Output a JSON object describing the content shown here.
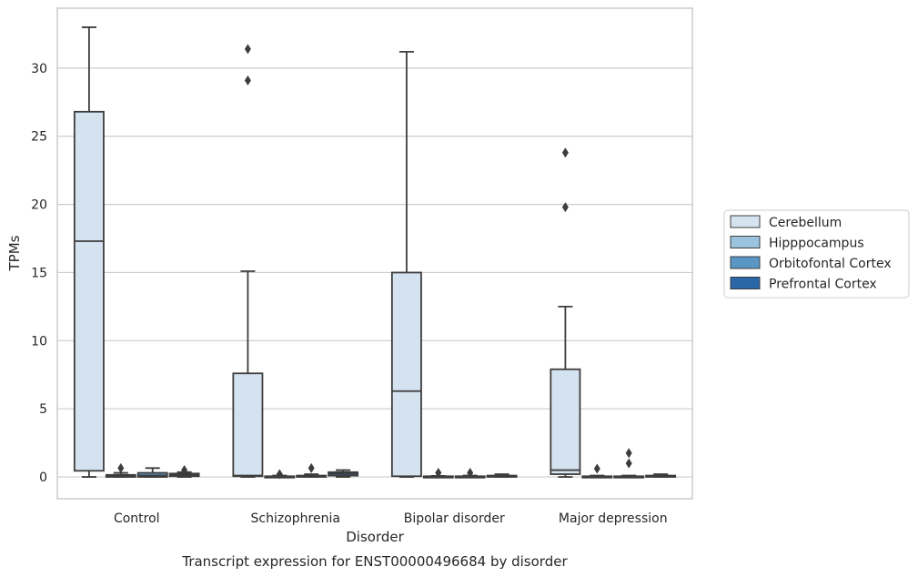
{
  "chart_data": {
    "type": "boxplot",
    "xlabel": "Disorder",
    "ylabel": "TPMs",
    "caption": "Transcript expression for ENST00000496684 by disorder",
    "ylim": [
      -1.6,
      34.4
    ],
    "yticks": [
      0,
      5,
      10,
      15,
      20,
      25,
      30
    ],
    "grid": "horizontal",
    "legend_placement": "right",
    "categories": [
      "Control",
      "Schizophrenia",
      "Bipolar disorder",
      "Major depression"
    ],
    "series": [
      {
        "name": "Cerebellum",
        "color": "#d5e2f0",
        "boxes": [
          {
            "whisker_low": 0.0,
            "q1": 0.45,
            "median": 17.3,
            "q3": 26.8,
            "whisker_high": 33.0,
            "outliers": []
          },
          {
            "whisker_low": 0.0,
            "q1": 0.05,
            "median": 0.1,
            "q3": 7.6,
            "whisker_high": 15.1,
            "outliers": [
              29.1,
              31.4
            ]
          },
          {
            "whisker_low": 0.0,
            "q1": 0.05,
            "median": 6.3,
            "q3": 15.0,
            "whisker_high": 31.2,
            "outliers": []
          },
          {
            "whisker_low": 0.0,
            "q1": 0.2,
            "median": 0.5,
            "q3": 7.9,
            "whisker_high": 12.5,
            "outliers": [
              19.8,
              23.8
            ]
          }
        ]
      },
      {
        "name": "Hipppocampus",
        "color": "#9bc3de",
        "boxes": [
          {
            "whisker_low": 0.0,
            "q1": 0.0,
            "median": 0.05,
            "q3": 0.15,
            "whisker_high": 0.3,
            "outliers": [
              0.65
            ]
          },
          {
            "whisker_low": 0.0,
            "q1": 0.0,
            "median": 0.02,
            "q3": 0.05,
            "whisker_high": 0.1,
            "outliers": [
              0.2
            ]
          },
          {
            "whisker_low": 0.0,
            "q1": 0.0,
            "median": 0.02,
            "q3": 0.05,
            "whisker_high": 0.08,
            "outliers": [
              0.3
            ]
          },
          {
            "whisker_low": 0.0,
            "q1": 0.0,
            "median": 0.02,
            "q3": 0.05,
            "whisker_high": 0.1,
            "outliers": [
              0.6
            ]
          }
        ]
      },
      {
        "name": "Orbitofontal Cortex",
        "color": "#5a96c4",
        "boxes": [
          {
            "whisker_low": 0.0,
            "q1": 0.0,
            "median": 0.1,
            "q3": 0.3,
            "whisker_high": 0.65,
            "outliers": []
          },
          {
            "whisker_low": 0.0,
            "q1": 0.0,
            "median": 0.03,
            "q3": 0.1,
            "whisker_high": 0.2,
            "outliers": [
              0.65
            ]
          },
          {
            "whisker_low": 0.0,
            "q1": 0.0,
            "median": 0.02,
            "q3": 0.05,
            "whisker_high": 0.1,
            "outliers": [
              0.3
            ]
          },
          {
            "whisker_low": 0.0,
            "q1": 0.0,
            "median": 0.02,
            "q3": 0.05,
            "whisker_high": 0.1,
            "outliers": [
              1.0,
              1.75
            ]
          }
        ]
      },
      {
        "name": "Prefrontal Cortex",
        "color": "#2a66a8",
        "boxes": [
          {
            "whisker_low": 0.0,
            "q1": 0.05,
            "median": 0.15,
            "q3": 0.25,
            "whisker_high": 0.35,
            "outliers": [
              0.5
            ]
          },
          {
            "whisker_low": 0.0,
            "q1": 0.1,
            "median": 0.25,
            "q3": 0.35,
            "whisker_high": 0.5,
            "outliers": []
          },
          {
            "whisker_low": 0.0,
            "q1": 0.0,
            "median": 0.05,
            "q3": 0.1,
            "whisker_high": 0.2,
            "outliers": []
          },
          {
            "whisker_low": 0.0,
            "q1": 0.0,
            "median": 0.05,
            "q3": 0.1,
            "whisker_high": 0.2,
            "outliers": []
          }
        ]
      }
    ]
  }
}
